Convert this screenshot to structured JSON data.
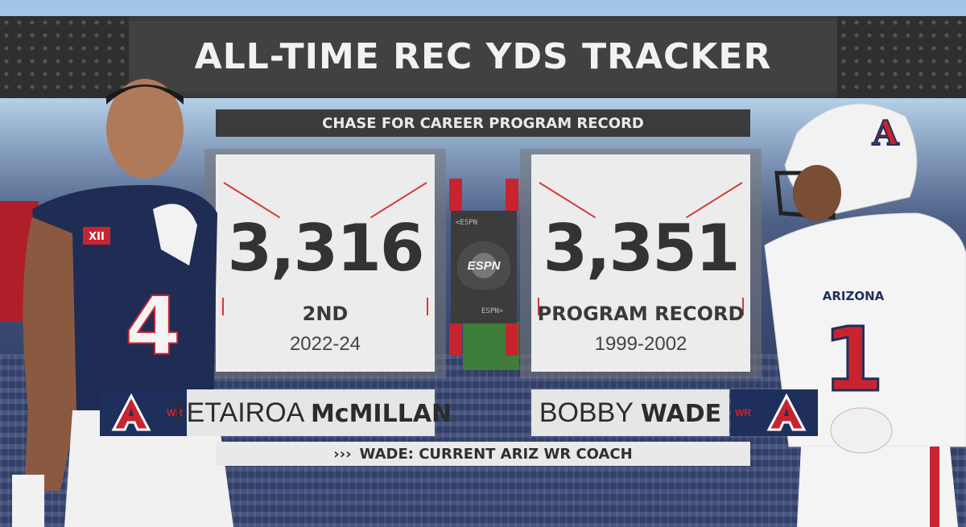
{
  "header": {
    "title": "ALL-TIME REC YDS TRACKER",
    "subtitle": "CHASE FOR CAREER PROGRAM RECORD"
  },
  "left_card": {
    "yards": "3,316",
    "rank": "2ND",
    "years": "2022-24"
  },
  "right_card": {
    "yards": "3,351",
    "rank": "PROGRAM RECORD",
    "years": "1999-2002"
  },
  "center": {
    "logo_text": "ESPN",
    "small_top": "<ESPN",
    "small_bottom": "ESPN>"
  },
  "left_player": {
    "position": "WR",
    "first_name": "TETAIROA",
    "last_name": "McMILLAN",
    "jersey": "4",
    "conference": "XII"
  },
  "right_player": {
    "position": "WR",
    "first_name": "BOBBY",
    "last_name": "WADE",
    "jersey": "1",
    "team": "ARIZONA"
  },
  "note": {
    "arrows": "›››",
    "text": "WADE: CURRENT ARIZ WR COACH"
  },
  "colors": {
    "navy": "#1e2f5c",
    "red": "#c8242f",
    "panel": "#ececec",
    "dark": "#3a3a3a"
  }
}
